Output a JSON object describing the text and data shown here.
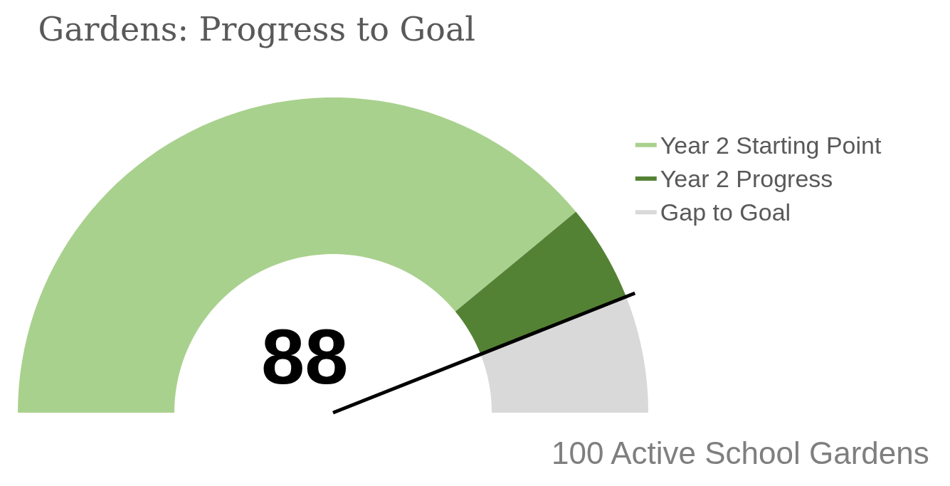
{
  "chart_data": {
    "type": "donut",
    "title": "Gardens: Progress to Goal",
    "categories": [
      "Year 2 Starting Point",
      "Year 2 Progress",
      "Gap to Goal"
    ],
    "values": [
      78,
      10,
      12
    ],
    "colors": [
      "#a9d18e",
      "#548235",
      "#d9d9d9"
    ],
    "needle": "Gap to Goal",
    "legend": "right",
    "annotations": [
      "88",
      "100 Active School Gardens"
    ]
  }
}
